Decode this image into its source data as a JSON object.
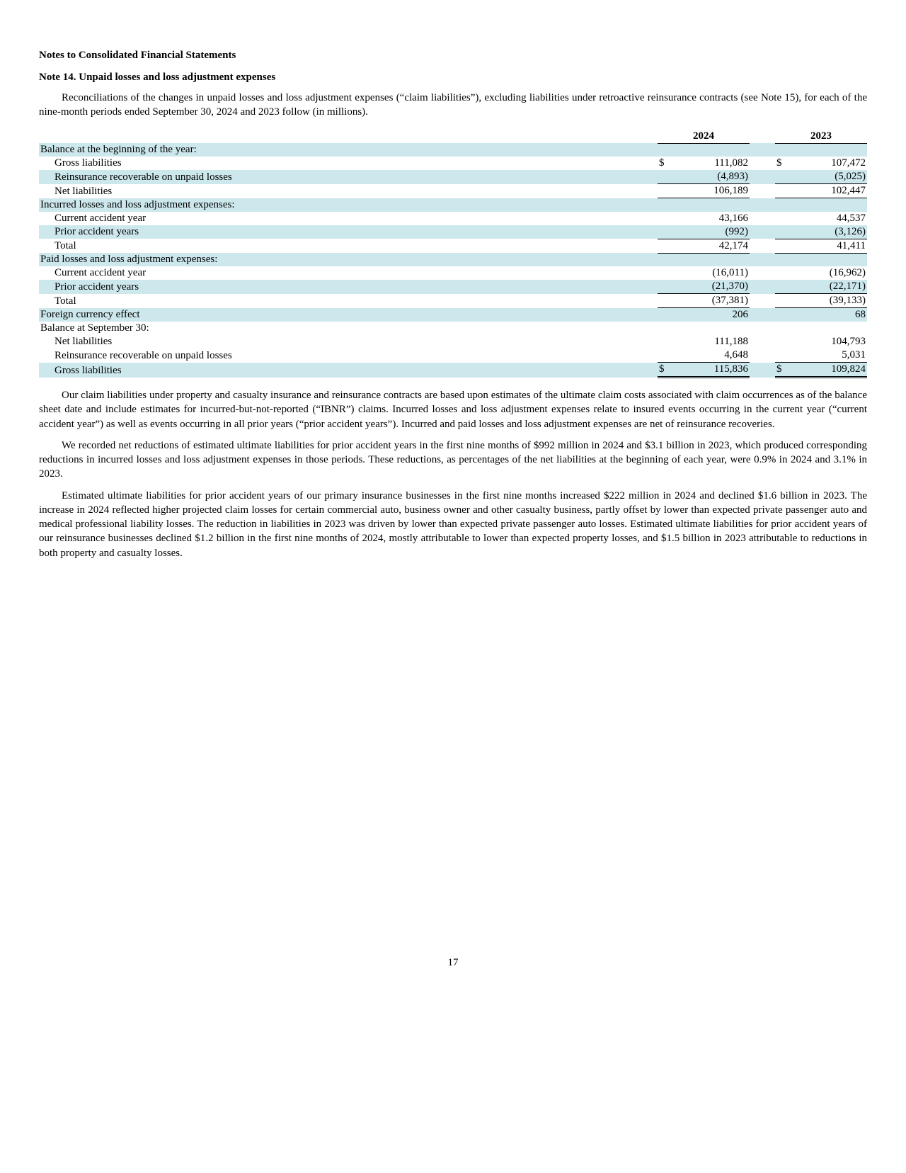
{
  "header": {
    "statements_title": "Notes to Consolidated Financial Statements",
    "note_title": "Note 14. Unpaid losses and loss adjustment expenses"
  },
  "intro_para": "Reconciliations of the changes in unpaid losses and loss adjustment expenses (“claim liabilities”), excluding liabilities under retroactive reinsurance contracts (see Note 15), for each of the nine-month periods ended September 30, 2024 and 2023 follow (in millions).",
  "table": {
    "col_headers": [
      "2024",
      "2023"
    ],
    "highlight_color": "#cde8ed",
    "rows": {
      "balance_begin_label": "Balance at the beginning of the year:",
      "gross_liab_label": "Gross liabilities",
      "gross_liab_2024": "111,082",
      "gross_liab_2023": "107,472",
      "reins_recov_label": "Reinsurance recoverable on unpaid losses",
      "reins_recov_2024": "(4,893)",
      "reins_recov_2023": "(5,025)",
      "net_liab_label": "Net liabilities",
      "net_liab_2024": "106,189",
      "net_liab_2023": "102,447",
      "incurred_label": "Incurred losses and loss adjustment expenses:",
      "cur_yr_label": "Current accident year",
      "inc_cur_2024": "43,166",
      "inc_cur_2023": "44,537",
      "prior_yr_label": "Prior accident years",
      "inc_prior_2024": "(992)",
      "inc_prior_2023": "(3,126)",
      "total_label": "Total",
      "inc_total_2024": "42,174",
      "inc_total_2023": "41,411",
      "paid_label": "Paid losses and loss adjustment expenses:",
      "paid_cur_2024": "(16,011)",
      "paid_cur_2023": "(16,962)",
      "paid_prior_2024": "(21,370)",
      "paid_prior_2023": "(22,171)",
      "paid_total_2024": "(37,381)",
      "paid_total_2023": "(39,133)",
      "fx_label": "Foreign currency effect",
      "fx_2024": "206",
      "fx_2023": "68",
      "balance_end_label": "Balance at September 30:",
      "end_net_2024": "111,188",
      "end_net_2023": "104,793",
      "end_reins_2024": "4,648",
      "end_reins_2023": "5,031",
      "end_gross_2024": "115,836",
      "end_gross_2023": "109,824",
      "dollar": "$"
    }
  },
  "para1": "Our claim liabilities under property and casualty insurance and reinsurance contracts are based upon estimates of the ultimate claim costs associated with claim occurrences as of the balance sheet date and include estimates for incurred-but-not-reported (“IBNR”) claims. Incurred losses and loss adjustment expenses relate to insured events occurring in the current year (“current accident year”) as well as events occurring in all prior years (“prior accident years”). Incurred and paid losses and loss adjustment expenses are net of reinsurance recoveries.",
  "para2": "We recorded net reductions of estimated ultimate liabilities for prior accident years in the first nine months of $992 million in 2024 and $3.1 billion in 2023, which produced corresponding reductions in incurred losses and loss adjustment expenses in those periods. These reductions, as percentages of the net liabilities at the beginning of each year, were 0.9% in 2024 and 3.1% in 2023.",
  "para3": "Estimated ultimate liabilities for prior accident years of our primary insurance businesses in the first nine months increased $222 million in 2024 and declined $1.6 billion in 2023. The increase in 2024 reflected higher projected claim losses for certain commercial auto, business owner and other casualty business, partly offset by lower than expected private passenger auto and medical professional liability losses. The reduction in liabilities in 2023 was driven by lower than expected private passenger auto losses. Estimated ultimate liabilities for prior accident years of our reinsurance businesses declined $1.2 billion in the first nine months of 2024, mostly attributable to lower than expected property losses, and $1.5 billion in 2023 attributable to reductions in both property and casualty losses.",
  "page_number": "17"
}
